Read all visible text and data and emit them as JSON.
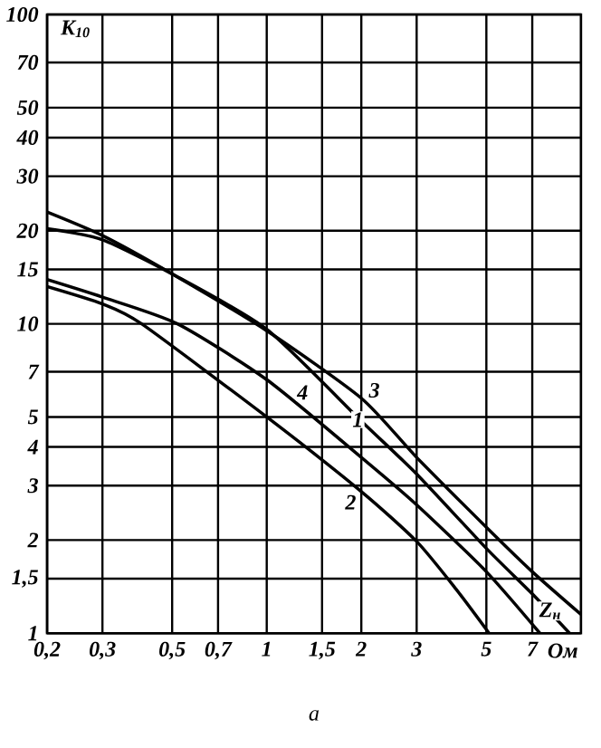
{
  "chart_data": {
    "type": "line",
    "log": "xy",
    "grid": true,
    "ylabel": "K$_{10}$",
    "xlabel": "Ом",
    "xlim": [
      0.2,
      10
    ],
    "ylim": [
      1,
      100
    ],
    "xticks": [
      {
        "value": 0.2,
        "label": "0,2"
      },
      {
        "value": 0.3,
        "label": "0,3"
      },
      {
        "value": 0.5,
        "label": "0,5"
      },
      {
        "value": 0.7,
        "label": "0,7"
      },
      1,
      {
        "value": 1.5,
        "label": "1,5"
      },
      2,
      3,
      5,
      7
    ],
    "yticks": [
      1,
      {
        "value": 1.5,
        "label": "1,5"
      },
      2,
      3,
      4,
      5,
      7,
      10,
      15,
      20,
      30,
      40,
      50,
      70,
      100
    ],
    "series": [
      {
        "color": "#000000",
        "x": [
          0.2,
          0.3,
          0.5,
          1,
          2,
          3,
          5,
          7,
          10
        ],
        "values": [
          23,
          19.3,
          14.5,
          9.5,
          5.75,
          3.7,
          2.2,
          1.58,
          1.15
        ]
      },
      {
        "color": "#000000",
        "x": [
          0.2,
          0.3,
          0.5,
          1,
          2,
          3,
          5,
          7,
          9.2
        ],
        "values": [
          20.3,
          18.7,
          14.5,
          9.6,
          4.85,
          3.27,
          1.88,
          1.34,
          1
        ]
      },
      {
        "color": "#000000",
        "x": [
          0.2,
          0.3,
          0.52,
          1,
          2,
          3,
          5,
          7.4
        ],
        "values": [
          13.9,
          12.2,
          10,
          6.6,
          3.7,
          2.6,
          1.58,
          1
        ]
      },
      {
        "color": "#000000",
        "x": [
          0.2,
          0.3,
          0.4,
          1,
          2,
          3,
          4,
          5.1
        ],
        "values": [
          13.2,
          11.6,
          10,
          5,
          2.87,
          1.98,
          1.39,
          1
        ]
      }
    ],
    "annotations": [
      {
        "text": "3",
        "x": 2.2,
        "y": 6.1
      },
      {
        "text": "1",
        "x": 1.95,
        "y": 4.9
      },
      {
        "text": "4",
        "x": 1.3,
        "y": 6.0
      },
      {
        "text": "2",
        "x": 1.85,
        "y": 2.65
      },
      {
        "text": "Z$_{н}$",
        "x": 8.0,
        "y": 1.18
      },
      "а"
    ]
  }
}
